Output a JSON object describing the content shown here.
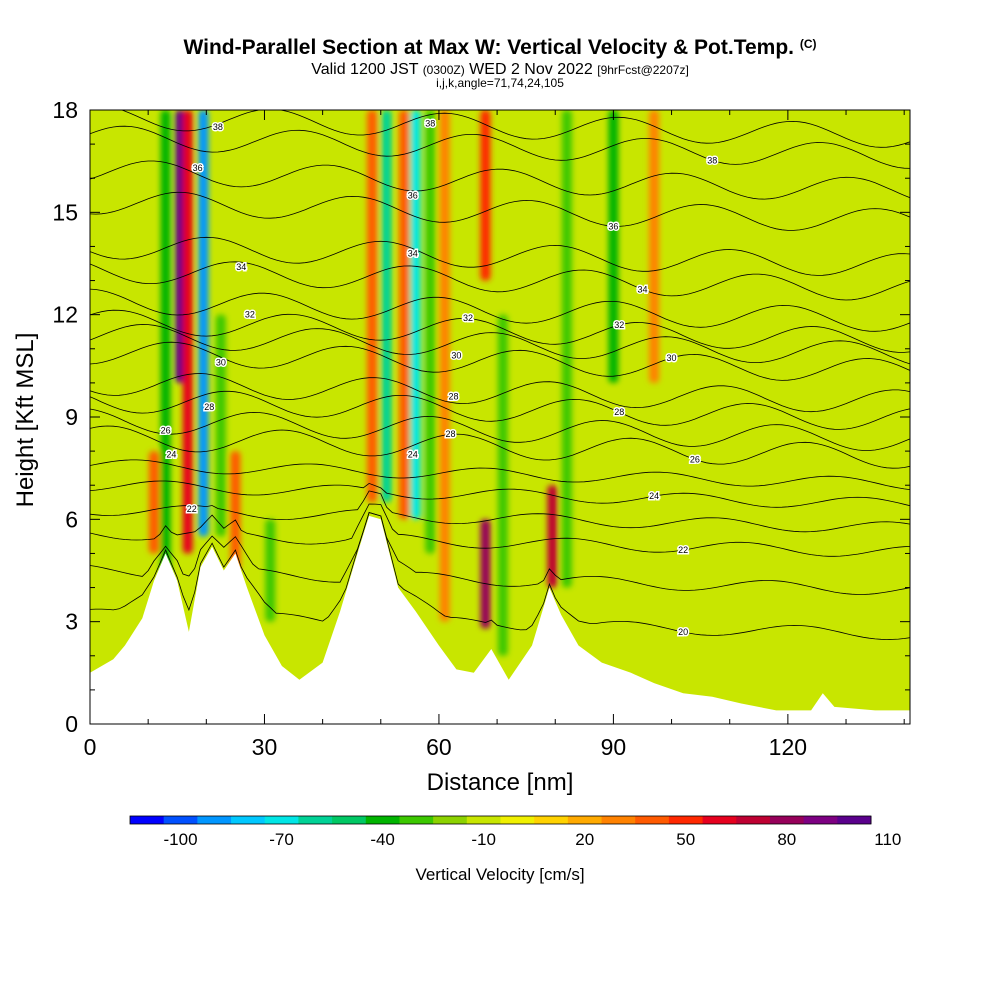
{
  "title": "Wind-Parallel Section at Max W: Vertical Velocity & Pot.Temp.",
  "title_mark": "(C)",
  "subtitle": {
    "valid": "Valid 1200 JST",
    "zulu": "(0300Z)",
    "date": "WED 2 Nov 2022",
    "fcst": "[9hrFcst@2207z]"
  },
  "indices": "i,j,k,angle=71,74,24,105",
  "chart_data": {
    "type": "heatmap",
    "xlabel": "Distance [nm]",
    "ylabel": "Height [Kft MSL]",
    "xlim": [
      0,
      141
    ],
    "ylim": [
      0,
      18
    ],
    "x_ticks": [
      "0",
      "30",
      "60",
      "90",
      "120"
    ],
    "y_ticks": [
      "0",
      "3",
      "6",
      "9",
      "12",
      "15",
      "18"
    ],
    "grid": false,
    "terrain_kft": [
      [
        0,
        1.5
      ],
      [
        4,
        1.9
      ],
      [
        6,
        2.3
      ],
      [
        9,
        3.1
      ],
      [
        11,
        4.2
      ],
      [
        13,
        5
      ],
      [
        15,
        4.2
      ],
      [
        17,
        2.7
      ],
      [
        19,
        4.6
      ],
      [
        21,
        5.2
      ],
      [
        23,
        4.5
      ],
      [
        25,
        5
      ],
      [
        27,
        4
      ],
      [
        30,
        2.6
      ],
      [
        33,
        1.7
      ],
      [
        36,
        1.3
      ],
      [
        40,
        1.8
      ],
      [
        43,
        3.3
      ],
      [
        46,
        5
      ],
      [
        48,
        6.1
      ],
      [
        50,
        6
      ],
      [
        53,
        4
      ],
      [
        56,
        3.3
      ],
      [
        60,
        2.3
      ],
      [
        63,
        1.6
      ],
      [
        66,
        1.5
      ],
      [
        69,
        2.2
      ],
      [
        72,
        1.3
      ],
      [
        76,
        2.3
      ],
      [
        79,
        4
      ],
      [
        81,
        3.2
      ],
      [
        84,
        2.3
      ],
      [
        88,
        1.8
      ],
      [
        93,
        1.5
      ],
      [
        97,
        1.2
      ],
      [
        102,
        0.9
      ],
      [
        107,
        0.8
      ],
      [
        112,
        0.6
      ],
      [
        118,
        0.4
      ],
      [
        124,
        0.4
      ],
      [
        126,
        0.9
      ],
      [
        128,
        0.5
      ],
      [
        135,
        0.4
      ],
      [
        141,
        0.4
      ]
    ],
    "w_features_cms": [
      {
        "x": 15.5,
        "y0": 10,
        "y1": 18,
        "w": 105
      },
      {
        "x": 16.8,
        "y0": 5,
        "y1": 18,
        "w": 60
      },
      {
        "x": 19.5,
        "y0": 5.5,
        "y1": 18,
        "w": -85
      },
      {
        "x": 13,
        "y0": 4,
        "y1": 18,
        "w": -40
      },
      {
        "x": 22.5,
        "y0": 5.5,
        "y1": 12,
        "w": -30
      },
      {
        "x": 11,
        "y0": 5,
        "y1": 8,
        "w": 40
      },
      {
        "x": 25,
        "y0": 4.5,
        "y1": 8,
        "w": 40
      },
      {
        "x": 31,
        "y0": 3,
        "y1": 6,
        "w": -30
      },
      {
        "x": 48.5,
        "y0": 6.5,
        "y1": 18,
        "w": 40
      },
      {
        "x": 51,
        "y0": 6.5,
        "y1": 18,
        "w": -55
      },
      {
        "x": 54,
        "y0": 6,
        "y1": 18,
        "w": 45
      },
      {
        "x": 56,
        "y0": 6,
        "y1": 18,
        "w": -70
      },
      {
        "x": 58.5,
        "y0": 5,
        "y1": 18,
        "w": -30
      },
      {
        "x": 61,
        "y0": 3,
        "y1": 18,
        "w": 30
      },
      {
        "x": 68,
        "y0": 2.8,
        "y1": 6,
        "w": 85
      },
      {
        "x": 68,
        "y0": 13,
        "y1": 18,
        "w": 50
      },
      {
        "x": 71,
        "y0": 2,
        "y1": 12,
        "w": -25
      },
      {
        "x": 79.5,
        "y0": 4,
        "y1": 7,
        "w": 70
      },
      {
        "x": 82,
        "y0": 4,
        "y1": 18,
        "w": -30
      },
      {
        "x": 90,
        "y0": 10,
        "y1": 18,
        "w": -35
      },
      {
        "x": 97,
        "y0": 10,
        "y1": 18,
        "w": 30
      }
    ],
    "theta_contours": [
      {
        "theta": 20,
        "base": 3.2,
        "label_x": 102
      },
      {
        "theta": 21,
        "base": 4.5,
        "label_x": null
      },
      {
        "theta": 22,
        "base": 5.6,
        "label_x": 102
      },
      {
        "theta": 23,
        "base": 6.3,
        "label_x": null
      },
      {
        "theta": 24,
        "base": 7.0,
        "label_x": 97
      },
      {
        "theta": 25,
        "base": 7.6,
        "label_x": null
      },
      {
        "theta": 26,
        "base": 8.4,
        "label_x": 104
      },
      {
        "theta": 27,
        "base": 8.9,
        "label_x": null
      },
      {
        "theta": 28,
        "base": 9.5,
        "label_x": 91
      },
      {
        "theta": 29,
        "base": 10.0,
        "label_x": null
      },
      {
        "theta": 30,
        "base": 10.9,
        "label_x": 100
      },
      {
        "theta": 31,
        "base": 11.4,
        "label_x": null
      },
      {
        "theta": 32,
        "base": 11.8,
        "label_x": 91
      },
      {
        "theta": 33,
        "base": 12.4,
        "label_x": null
      },
      {
        "theta": 34,
        "base": 13.3,
        "label_x": 95
      },
      {
        "theta": 35,
        "base": 14.0,
        "label_x": null
      },
      {
        "theta": 36,
        "base": 15.3,
        "label_x": 90
      },
      {
        "theta": 37,
        "base": 16.2,
        "label_x": null
      },
      {
        "theta": 38,
        "base": 17.2,
        "label_x": 107
      },
      {
        "theta": 39,
        "base": 17.8,
        "label_x": null
      }
    ],
    "extra_contour_labels": [
      {
        "text": "38",
        "x": 22,
        "y": 17.5
      },
      {
        "text": "36",
        "x": 18.5,
        "y": 16.3
      },
      {
        "text": "34",
        "x": 26,
        "y": 13.4
      },
      {
        "text": "32",
        "x": 27.5,
        "y": 12.0
      },
      {
        "text": "30",
        "x": 22.5,
        "y": 10.6
      },
      {
        "text": "28",
        "x": 20.5,
        "y": 9.3
      },
      {
        "text": "26",
        "x": 13,
        "y": 8.6
      },
      {
        "text": "24",
        "x": 14,
        "y": 7.9
      },
      {
        "text": "22",
        "x": 17.5,
        "y": 6.3
      },
      {
        "text": "38",
        "x": 58.5,
        "y": 17.6
      },
      {
        "text": "36",
        "x": 55.5,
        "y": 15.5
      },
      {
        "text": "34",
        "x": 55.5,
        "y": 13.8
      },
      {
        "text": "32",
        "x": 65,
        "y": 11.9
      },
      {
        "text": "30",
        "x": 63,
        "y": 10.8
      },
      {
        "text": "28",
        "x": 62.5,
        "y": 9.6
      },
      {
        "text": "28",
        "x": 62,
        "y": 8.5
      },
      {
        "text": "24",
        "x": 55.5,
        "y": 7.9
      }
    ],
    "colorbar": {
      "label": "Vertical Velocity [cm/s]",
      "tick_labels": [
        "-100",
        "-70",
        "-40",
        "-10",
        "20",
        "50",
        "80",
        "110"
      ],
      "colors": [
        "#0000ff",
        "#0050ff",
        "#0096ff",
        "#00c8ff",
        "#00e6e6",
        "#00d296",
        "#00c864",
        "#00b400",
        "#3cc800",
        "#8cd200",
        "#c8e600",
        "#f0f000",
        "#ffd200",
        "#ffaa00",
        "#ff8200",
        "#ff5a00",
        "#ff2800",
        "#e6001e",
        "#be0032",
        "#96005a",
        "#7d0082",
        "#5a008c"
      ]
    }
  }
}
